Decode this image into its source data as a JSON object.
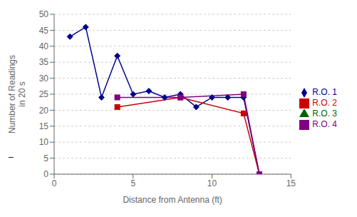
{
  "chart_data": {
    "type": "line",
    "xlabel": "Distance from Antenna (ft)",
    "ylabel": "Number of Readings\nin 20 s",
    "xlim": [
      0,
      15
    ],
    "ylim": [
      0,
      50
    ],
    "xticks": [
      0,
      5,
      10,
      15
    ],
    "yticks": [
      0,
      5,
      10,
      15,
      20,
      25,
      30,
      35,
      40,
      45,
      50
    ],
    "grid": true,
    "legend": "right",
    "annotations": [
      "–"
    ],
    "series": [
      {
        "name": "R.O. 1",
        "color": "#00008B",
        "marker": "diamond",
        "x": [
          1,
          2,
          3,
          4,
          5,
          6,
          7,
          8,
          9,
          10,
          11,
          12,
          13
        ],
        "values": [
          43,
          46,
          24,
          37,
          25,
          26,
          24,
          25,
          21,
          24,
          24,
          24,
          0
        ]
      },
      {
        "name": "R.O. 2",
        "color": "#CC0000",
        "marker": "square",
        "x": [
          4,
          8,
          12,
          13
        ],
        "values": [
          21,
          24,
          19,
          0
        ]
      },
      {
        "name": "R.O. 3",
        "color": "#006400",
        "marker": "triangle",
        "x": [],
        "values": []
      },
      {
        "name": "R.O. 4",
        "color": "#800080",
        "marker": "square",
        "x": [
          4,
          8,
          12,
          13
        ],
        "values": [
          24,
          24,
          25,
          0
        ]
      }
    ]
  }
}
